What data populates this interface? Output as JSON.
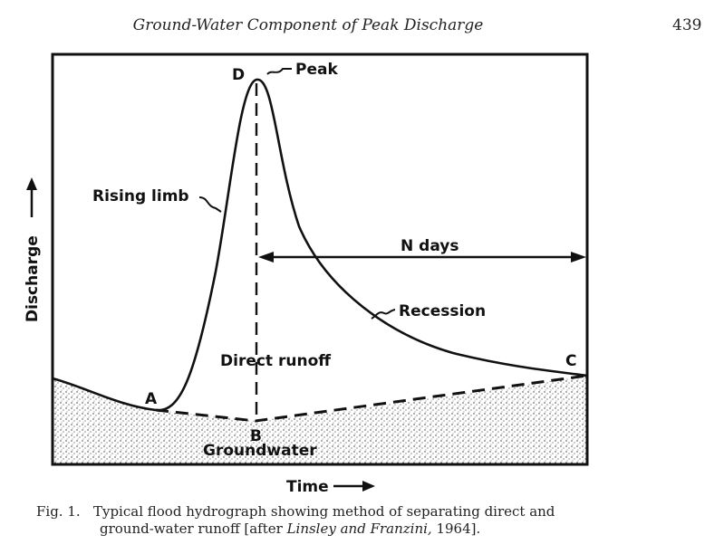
{
  "page": {
    "header_title": "Ground-Water Component of Peak Discharge",
    "page_number": "439"
  },
  "diagram": {
    "axis_y_label": "Discharge",
    "axis_x_label": "Time",
    "point_a": "A",
    "point_b": "B",
    "point_c": "C",
    "point_d": "D",
    "peak_label": "Peak",
    "rising_limb_label": "Rising limb",
    "recession_label": "Recession",
    "n_days_label": "N days",
    "direct_runoff_label": "Direct runoff",
    "groundwater_label": "Groundwater"
  },
  "caption": {
    "prefix": "Fig. 1.",
    "text_line1": "Typical flood hydrograph showing method of separating direct and",
    "text_line2_start": "ground-water runoff [after ",
    "citation": "Linsley and Franzini,",
    "text_line2_end": " 1964]."
  }
}
